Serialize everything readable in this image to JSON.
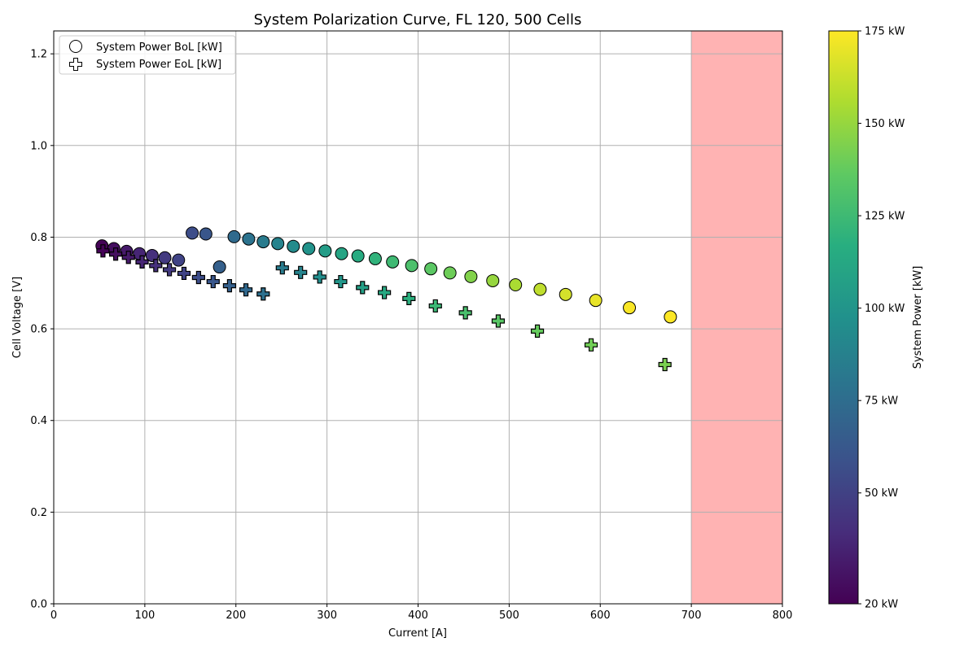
{
  "chart_data": {
    "type": "scatter",
    "title": "System Polarization Curve, FL 120, 500 Cells",
    "xlabel": "Current [A]",
    "ylabel": "Cell Voltage [V]",
    "xlim": [
      0,
      800
    ],
    "ylim": [
      0,
      1.25
    ],
    "x_ticks": [
      "0",
      "100",
      "200",
      "300",
      "400",
      "500",
      "600",
      "700",
      "800"
    ],
    "y_ticks": [
      "0.0",
      "0.2",
      "0.4",
      "0.6",
      "0.8",
      "1.0",
      "1.2"
    ],
    "grid": true,
    "legend_position": "upper-left",
    "shaded_region": {
      "x_from": 700,
      "x_to": 800,
      "color": "#ffb3b3"
    },
    "colorbar": {
      "label": "System Power [kW]",
      "range": [
        20,
        175
      ],
      "ticks": [
        "20 kW",
        "50 kW",
        "75 kW",
        "100 kW",
        "125 kW",
        "150 kW",
        "175 kW"
      ],
      "tick_values": [
        20,
        50,
        75,
        100,
        125,
        150,
        175
      ],
      "colormap": "viridis"
    },
    "series": [
      {
        "name": "System Power BoL [kW]",
        "marker": "circle",
        "points": [
          {
            "x": 53,
            "y": 0.781,
            "power": 21
          },
          {
            "x": 66,
            "y": 0.775,
            "power": 26
          },
          {
            "x": 80,
            "y": 0.769,
            "power": 31
          },
          {
            "x": 94,
            "y": 0.764,
            "power": 36
          },
          {
            "x": 108,
            "y": 0.76,
            "power": 41
          },
          {
            "x": 122,
            "y": 0.755,
            "power": 46
          },
          {
            "x": 137,
            "y": 0.75,
            "power": 51
          },
          {
            "x": 152,
            "y": 0.809,
            "power": 56
          },
          {
            "x": 167,
            "y": 0.807,
            "power": 61
          },
          {
            "x": 182,
            "y": 0.735,
            "power": 67
          },
          {
            "x": 198,
            "y": 0.801,
            "power": 73
          },
          {
            "x": 214,
            "y": 0.796,
            "power": 79
          },
          {
            "x": 230,
            "y": 0.79,
            "power": 84
          },
          {
            "x": 246,
            "y": 0.786,
            "power": 89
          },
          {
            "x": 263,
            "y": 0.78,
            "power": 94
          },
          {
            "x": 280,
            "y": 0.775,
            "power": 99
          },
          {
            "x": 298,
            "y": 0.77,
            "power": 105
          },
          {
            "x": 316,
            "y": 0.764,
            "power": 110
          },
          {
            "x": 334,
            "y": 0.759,
            "power": 115
          },
          {
            "x": 353,
            "y": 0.753,
            "power": 120
          },
          {
            "x": 372,
            "y": 0.746,
            "power": 125
          },
          {
            "x": 393,
            "y": 0.738,
            "power": 130
          },
          {
            "x": 414,
            "y": 0.731,
            "power": 135
          },
          {
            "x": 435,
            "y": 0.722,
            "power": 140
          },
          {
            "x": 458,
            "y": 0.714,
            "power": 145
          },
          {
            "x": 482,
            "y": 0.705,
            "power": 150
          },
          {
            "x": 507,
            "y": 0.696,
            "power": 155
          },
          {
            "x": 534,
            "y": 0.686,
            "power": 160
          },
          {
            "x": 562,
            "y": 0.675,
            "power": 165
          },
          {
            "x": 595,
            "y": 0.662,
            "power": 170
          },
          {
            "x": 632,
            "y": 0.646,
            "power": 174
          },
          {
            "x": 677,
            "y": 0.626,
            "power": 175
          }
        ]
      },
      {
        "name": "System Power EoL [kW]",
        "marker": "plus",
        "points": [
          {
            "x": 54,
            "y": 0.77,
            "power": 21
          },
          {
            "x": 68,
            "y": 0.763,
            "power": 26
          },
          {
            "x": 82,
            "y": 0.756,
            "power": 31
          },
          {
            "x": 97,
            "y": 0.746,
            "power": 36
          },
          {
            "x": 112,
            "y": 0.738,
            "power": 41
          },
          {
            "x": 127,
            "y": 0.729,
            "power": 46
          },
          {
            "x": 143,
            "y": 0.721,
            "power": 51
          },
          {
            "x": 159,
            "y": 0.712,
            "power": 56
          },
          {
            "x": 175,
            "y": 0.703,
            "power": 61
          },
          {
            "x": 193,
            "y": 0.694,
            "power": 67
          },
          {
            "x": 211,
            "y": 0.685,
            "power": 72
          },
          {
            "x": 230,
            "y": 0.676,
            "power": 77
          },
          {
            "x": 251,
            "y": 0.733,
            "power": 84
          },
          {
            "x": 271,
            "y": 0.723,
            "power": 89
          },
          {
            "x": 292,
            "y": 0.713,
            "power": 95
          },
          {
            "x": 315,
            "y": 0.703,
            "power": 101
          },
          {
            "x": 339,
            "y": 0.69,
            "power": 107
          },
          {
            "x": 363,
            "y": 0.679,
            "power": 113
          },
          {
            "x": 390,
            "y": 0.666,
            "power": 118
          },
          {
            "x": 419,
            "y": 0.65,
            "power": 124
          },
          {
            "x": 452,
            "y": 0.635,
            "power": 129
          },
          {
            "x": 488,
            "y": 0.617,
            "power": 134
          },
          {
            "x": 531,
            "y": 0.595,
            "power": 138
          },
          {
            "x": 590,
            "y": 0.565,
            "power": 141
          },
          {
            "x": 671,
            "y": 0.522,
            "power": 143
          }
        ]
      }
    ]
  }
}
